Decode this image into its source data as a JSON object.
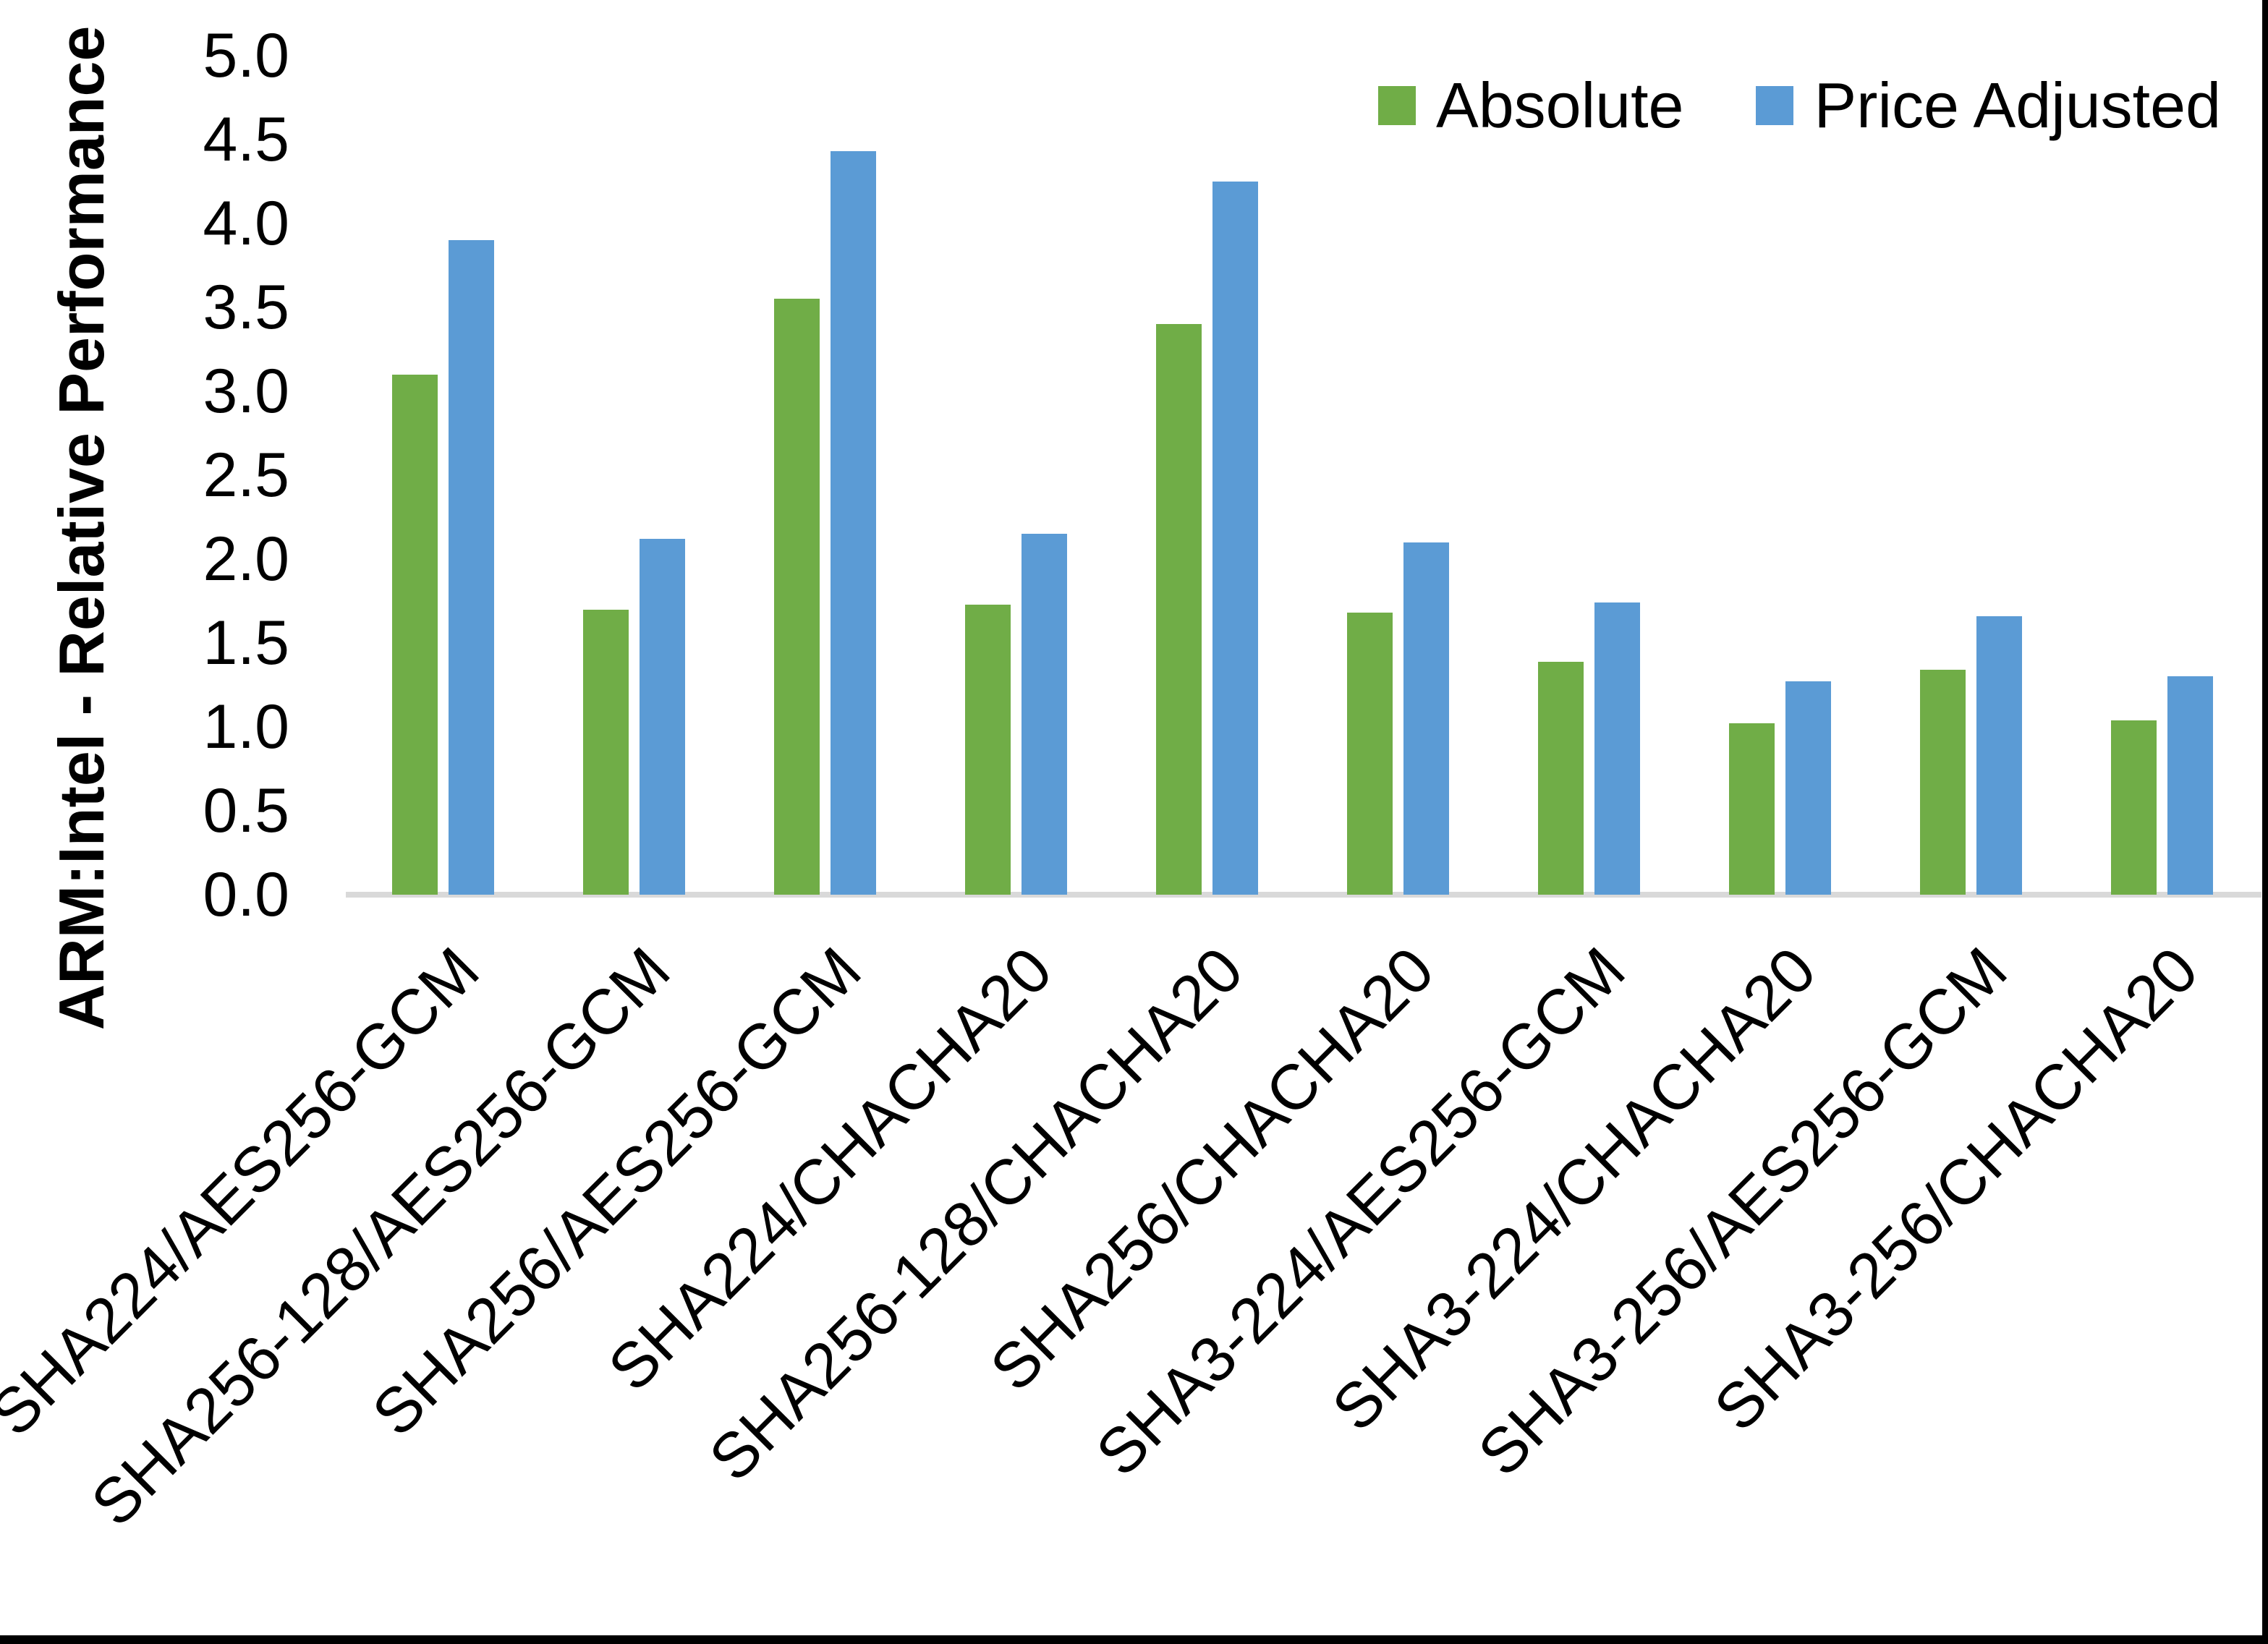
{
  "frame": {
    "bottom_bar_color": "#000000",
    "right_bar_color": "#000000",
    "background": "#ffffff"
  },
  "chart_data": {
    "type": "bar",
    "title": "",
    "xlabel": "",
    "ylabel": "ARM:Intel - Relative Performance",
    "ylim": [
      0.0,
      5.0
    ],
    "y_tick_step": 0.5,
    "y_ticks": [
      "5.0",
      "4.5",
      "4.0",
      "3.5",
      "3.0",
      "2.5",
      "2.0",
      "1.5",
      "1.0",
      "0.5",
      "0.0"
    ],
    "grid": false,
    "legend_position": "top-right",
    "axis_line_color": "#D9D9D9",
    "categories": [
      "SHA224/AES256-GCM",
      "SHA256-128/AES256-GCM",
      "SHA256/AES256-GCM",
      "SHA224/CHACHA20",
      "SHA256-128/CHACHA20",
      "SHA256/CHACHA20",
      "SHA3-224/AES256-GCM",
      "SHA3-224/CHACHA20",
      "SHA3-256/AES256-GCM",
      "SHA3-256/CHACHA20"
    ],
    "series": [
      {
        "name": "Absolute",
        "color": "#70AD47",
        "values": [
          3.1,
          1.7,
          3.55,
          1.73,
          3.4,
          1.68,
          1.39,
          1.02,
          1.34,
          1.04
        ]
      },
      {
        "name": "Price Adjusted",
        "color": "#5B9BD5",
        "values": [
          3.9,
          2.12,
          4.43,
          2.15,
          4.25,
          2.1,
          1.74,
          1.27,
          1.66,
          1.3
        ]
      }
    ]
  }
}
